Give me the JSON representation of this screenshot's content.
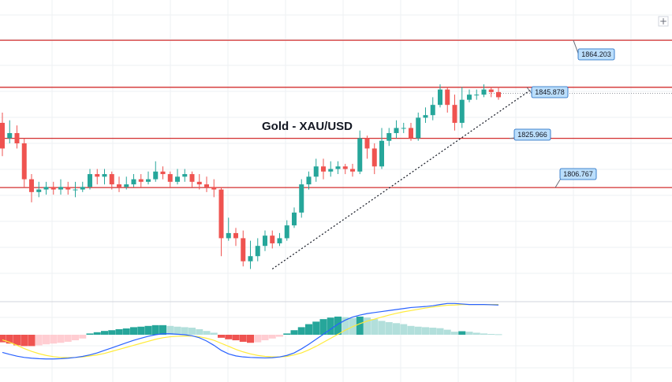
{
  "chart_data": [
    {
      "type": "candlestick",
      "title": "Gold - XAU/USD",
      "ylim": [
        1770,
        1875
      ],
      "levels": [
        {
          "label": "1864.203",
          "value": 1864.203
        },
        {
          "label": "1845.878",
          "value": 1845.878
        },
        {
          "label": "1825.966",
          "value": 1825.966
        },
        {
          "label": "1806.767",
          "value": 1806.767
        }
      ],
      "trendline": {
        "from": [
          37,
          1775
        ],
        "to": [
          73,
          1846
        ]
      },
      "candles": [
        [
          1832,
          1822,
          1836,
          1819
        ],
        [
          1826,
          1828,
          1833,
          1824
        ],
        [
          1828,
          1824,
          1831,
          1822
        ],
        [
          1824,
          1810,
          1826,
          1807
        ],
        [
          1810,
          1805,
          1812,
          1801
        ],
        [
          1805,
          1806,
          1809,
          1803
        ],
        [
          1806,
          1807,
          1809,
          1804
        ],
        [
          1807,
          1806,
          1809,
          1804
        ],
        [
          1806,
          1807,
          1810,
          1804
        ],
        [
          1807,
          1806,
          1809,
          1804
        ],
        [
          1806,
          1806,
          1809,
          1803
        ],
        [
          1806,
          1807,
          1809,
          1805
        ],
        [
          1807,
          1812,
          1814,
          1806
        ],
        [
          1812,
          1811,
          1814,
          1808
        ],
        [
          1811,
          1812,
          1814,
          1808
        ],
        [
          1812,
          1808,
          1813,
          1806
        ],
        [
          1808,
          1807,
          1811,
          1805
        ],
        [
          1807,
          1808,
          1811,
          1806
        ],
        [
          1808,
          1810,
          1812,
          1807
        ],
        [
          1810,
          1809,
          1812,
          1807
        ],
        [
          1809,
          1810,
          1813,
          1808
        ],
        [
          1810,
          1813,
          1817,
          1809
        ],
        [
          1813,
          1812,
          1815,
          1810
        ],
        [
          1812,
          1809,
          1813,
          1807
        ],
        [
          1809,
          1811,
          1814,
          1808
        ],
        [
          1811,
          1812,
          1814,
          1809
        ],
        [
          1812,
          1809,
          1813,
          1807
        ],
        [
          1809,
          1808,
          1812,
          1806
        ],
        [
          1808,
          1807,
          1811,
          1805
        ],
        [
          1807,
          1806,
          1810,
          1803
        ],
        [
          1806,
          1787,
          1807,
          1780
        ],
        [
          1787,
          1789,
          1795,
          1786
        ],
        [
          1789,
          1787,
          1791,
          1784
        ],
        [
          1787,
          1778,
          1790,
          1776
        ],
        [
          1778,
          1780,
          1786,
          1775
        ],
        [
          1780,
          1784,
          1787,
          1778
        ],
        [
          1784,
          1788,
          1790,
          1782
        ],
        [
          1788,
          1785,
          1790,
          1783
        ],
        [
          1785,
          1787,
          1789,
          1784
        ],
        [
          1787,
          1792,
          1794,
          1786
        ],
        [
          1792,
          1797,
          1799,
          1791
        ],
        [
          1797,
          1808,
          1810,
          1795
        ],
        [
          1808,
          1811,
          1813,
          1806
        ],
        [
          1811,
          1815,
          1818,
          1809
        ],
        [
          1815,
          1813,
          1818,
          1810
        ],
        [
          1813,
          1814,
          1817,
          1811
        ],
        [
          1814,
          1815,
          1817,
          1812
        ],
        [
          1815,
          1814,
          1816,
          1812
        ],
        [
          1814,
          1813,
          1816,
          1811
        ],
        [
          1813,
          1826,
          1829,
          1812
        ],
        [
          1826,
          1822,
          1827,
          1818
        ],
        [
          1822,
          1815,
          1824,
          1812
        ],
        [
          1815,
          1825,
          1830,
          1814
        ],
        [
          1825,
          1828,
          1830,
          1823
        ],
        [
          1828,
          1830,
          1833,
          1826
        ],
        [
          1830,
          1830,
          1832,
          1828
        ],
        [
          1830,
          1826,
          1832,
          1825
        ],
        [
          1826,
          1834,
          1836,
          1825
        ],
        [
          1834,
          1835,
          1838,
          1832
        ],
        [
          1835,
          1839,
          1842,
          1833
        ],
        [
          1839,
          1845,
          1847,
          1838
        ],
        [
          1845,
          1839,
          1846,
          1836
        ],
        [
          1839,
          1832,
          1843,
          1829
        ],
        [
          1832,
          1841,
          1846,
          1830
        ],
        [
          1841,
          1843,
          1845,
          1840
        ],
        [
          1843,
          1843,
          1845,
          1841
        ],
        [
          1843,
          1845,
          1847,
          1842
        ],
        [
          1845,
          1844,
          1846,
          1842
        ],
        [
          1844,
          1842,
          1846,
          1841
        ]
      ]
    },
    {
      "type": "macd",
      "ylim": [
        -1,
        1
      ],
      "histogram": [
        -0.3,
        -0.35,
        -0.42,
        -0.45,
        -0.45,
        -0.42,
        -0.38,
        -0.35,
        -0.32,
        -0.28,
        -0.22,
        -0.15,
        0.05,
        0.1,
        0.15,
        0.18,
        0.22,
        0.25,
        0.3,
        0.32,
        0.35,
        0.38,
        0.38,
        0.35,
        0.32,
        0.3,
        0.28,
        0.22,
        0.15,
        0.08,
        -0.12,
        -0.18,
        -0.22,
        -0.28,
        -0.32,
        -0.3,
        -0.22,
        -0.15,
        -0.08,
        0.05,
        0.18,
        0.3,
        0.42,
        0.52,
        0.62,
        0.68,
        0.72,
        0.7,
        0.66,
        0.72,
        0.68,
        0.62,
        0.55,
        0.5,
        0.46,
        0.42,
        0.35,
        0.32,
        0.3,
        0.28,
        0.26,
        0.2,
        0.12,
        0.14,
        0.12,
        0.08,
        0.05,
        0.03,
        0.02
      ],
      "macd_line": [
        -0.7,
        -0.78,
        -0.85,
        -0.9,
        -0.93,
        -0.95,
        -0.96,
        -0.96,
        -0.95,
        -0.93,
        -0.9,
        -0.86,
        -0.8,
        -0.72,
        -0.62,
        -0.52,
        -0.42,
        -0.32,
        -0.22,
        -0.14,
        -0.06,
        0.0,
        0.04,
        0.04,
        0.02,
        0.0,
        -0.04,
        -0.12,
        -0.25,
        -0.42,
        -0.62,
        -0.76,
        -0.84,
        -0.88,
        -0.9,
        -0.91,
        -0.92,
        -0.91,
        -0.88,
        -0.82,
        -0.72,
        -0.56,
        -0.38,
        -0.18,
        0.02,
        0.22,
        0.42,
        0.58,
        0.7,
        0.78,
        0.84,
        0.88,
        0.92,
        0.96,
        1.0,
        1.04,
        1.08,
        1.1,
        1.12,
        1.15,
        1.2,
        1.24,
        1.24,
        1.22,
        1.2,
        1.2,
        1.2,
        1.19,
        1.18
      ],
      "signal_line": [
        -0.2,
        -0.3,
        -0.42,
        -0.55,
        -0.66,
        -0.75,
        -0.82,
        -0.87,
        -0.9,
        -0.91,
        -0.9,
        -0.88,
        -0.84,
        -0.8,
        -0.74,
        -0.66,
        -0.58,
        -0.5,
        -0.42,
        -0.34,
        -0.26,
        -0.18,
        -0.12,
        -0.08,
        -0.06,
        -0.05,
        -0.05,
        -0.08,
        -0.14,
        -0.22,
        -0.34,
        -0.46,
        -0.58,
        -0.68,
        -0.76,
        -0.82,
        -0.86,
        -0.88,
        -0.88,
        -0.86,
        -0.8,
        -0.72,
        -0.6,
        -0.46,
        -0.3,
        -0.14,
        0.02,
        0.18,
        0.32,
        0.44,
        0.54,
        0.62,
        0.7,
        0.78,
        0.85,
        0.91,
        0.96,
        1.01,
        1.06,
        1.1,
        1.14,
        1.17,
        1.18,
        1.2,
        1.2,
        1.2,
        1.2,
        1.2,
        1.2
      ]
    }
  ],
  "colors": {
    "up": "#26a69a",
    "down": "#ef5350",
    "level_line": "#d32f2f",
    "label_fill": "#bbdefb",
    "label_stroke": "#1565c0",
    "hist_up_strong": "#26a69a",
    "hist_up_weak": "#b2dfdb",
    "hist_down_strong": "#ef5350",
    "hist_down_weak": "#ffcdd2",
    "macd_line": "#2962ff",
    "signal_line": "#ffeb3b",
    "grid": "#eef0f3"
  },
  "toolbar": {
    "plus_icon": "+"
  }
}
